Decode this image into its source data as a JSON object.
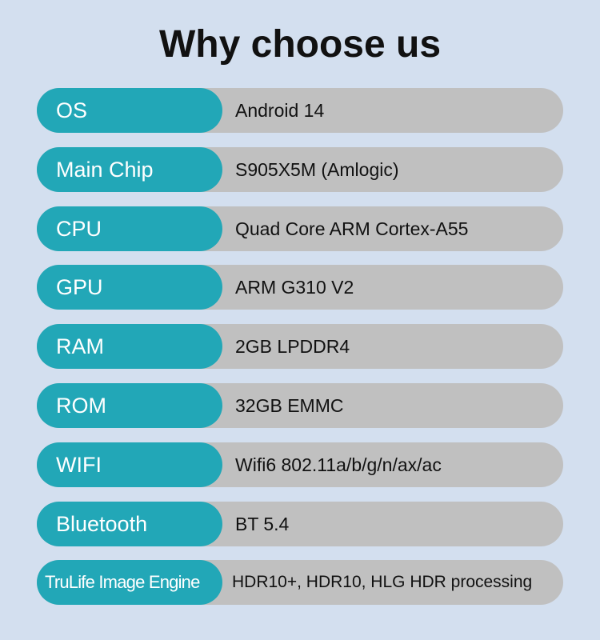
{
  "title": "Why choose us",
  "colors": {
    "background": "#d3dfef",
    "label_bg": "#22a7b7",
    "value_bg": "#c0c0c0"
  },
  "specs": [
    {
      "label": "OS",
      "value": "Android 14"
    },
    {
      "label": "Main Chip",
      "value": "S905X5M (Amlogic)"
    },
    {
      "label": "CPU",
      "value": "Quad Core ARM Cortex-A55"
    },
    {
      "label": "GPU",
      "value": "ARM G310 V2"
    },
    {
      "label": "RAM",
      "value": "2GB LPDDR4"
    },
    {
      "label": "ROM",
      "value": "32GB EMMC"
    },
    {
      "label": "WIFI",
      "value": "Wifi6 802.11a/b/g/n/ax/ac"
    },
    {
      "label": "Bluetooth",
      "value": "BT  5.4"
    },
    {
      "label": "TruLife Image Engine",
      "value": "HDR10+, HDR10, HLG HDR processing"
    }
  ]
}
